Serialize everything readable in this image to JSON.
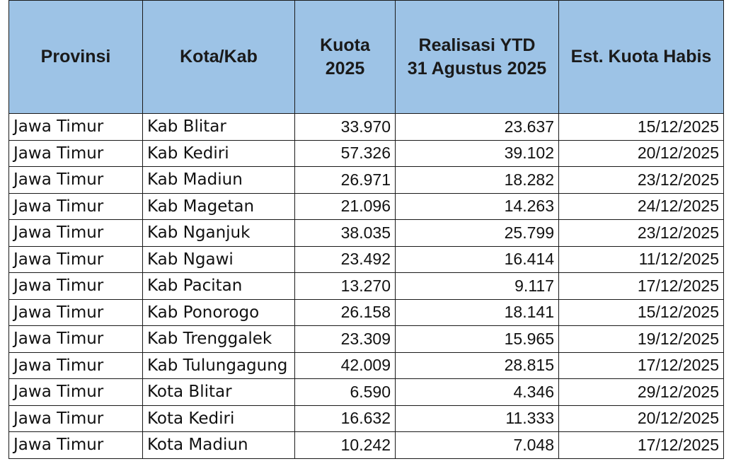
{
  "table": {
    "headers": {
      "provinsi": "Provinsi",
      "kota_kab": "Kota/Kab",
      "kuota_line1": "Kuota",
      "kuota_line2": "2025",
      "realisasi_line1": "Realisasi YTD",
      "realisasi_line2": "31 Agustus 2025",
      "est": "Est. Kuota Habis"
    },
    "rows": [
      {
        "provinsi": "Jawa Timur",
        "kota": "Kab Blitar",
        "kuota": "33.970",
        "realisasi": "23.637",
        "est": "15/12/2025"
      },
      {
        "provinsi": "Jawa Timur",
        "kota": "Kab Kediri",
        "kuota": "57.326",
        "realisasi": "39.102",
        "est": "20/12/2025"
      },
      {
        "provinsi": "Jawa Timur",
        "kota": "Kab Madiun",
        "kuota": "26.971",
        "realisasi": "18.282",
        "est": "23/12/2025"
      },
      {
        "provinsi": "Jawa Timur",
        "kota": "Kab Magetan",
        "kuota": "21.096",
        "realisasi": "14.263",
        "est": "24/12/2025"
      },
      {
        "provinsi": "Jawa Timur",
        "kota": "Kab Nganjuk",
        "kuota": "38.035",
        "realisasi": "25.799",
        "est": "23/12/2025"
      },
      {
        "provinsi": "Jawa Timur",
        "kota": "Kab Ngawi",
        "kuota": "23.492",
        "realisasi": "16.414",
        "est": "11/12/2025"
      },
      {
        "provinsi": "Jawa Timur",
        "kota": "Kab Pacitan",
        "kuota": "13.270",
        "realisasi": "9.117",
        "est": "17/12/2025"
      },
      {
        "provinsi": "Jawa Timur",
        "kota": "Kab Ponorogo",
        "kuota": "26.158",
        "realisasi": "18.141",
        "est": "15/12/2025"
      },
      {
        "provinsi": "Jawa Timur",
        "kota": "Kab Trenggalek",
        "kuota": "23.309",
        "realisasi": "15.965",
        "est": "19/12/2025"
      },
      {
        "provinsi": "Jawa Timur",
        "kota": "Kab Tulungagung",
        "kuota": "42.009",
        "realisasi": "28.815",
        "est": "17/12/2025"
      },
      {
        "provinsi": "Jawa Timur",
        "kota": "Kota Blitar",
        "kuota": "6.590",
        "realisasi": "4.346",
        "est": "29/12/2025"
      },
      {
        "provinsi": "Jawa Timur",
        "kota": "Kota Kediri",
        "kuota": "16.632",
        "realisasi": "11.333",
        "est": "20/12/2025"
      },
      {
        "provinsi": "Jawa Timur",
        "kota": "Kota Madiun",
        "kuota": "10.242",
        "realisasi": "7.048",
        "est": "17/12/2025"
      }
    ]
  }
}
